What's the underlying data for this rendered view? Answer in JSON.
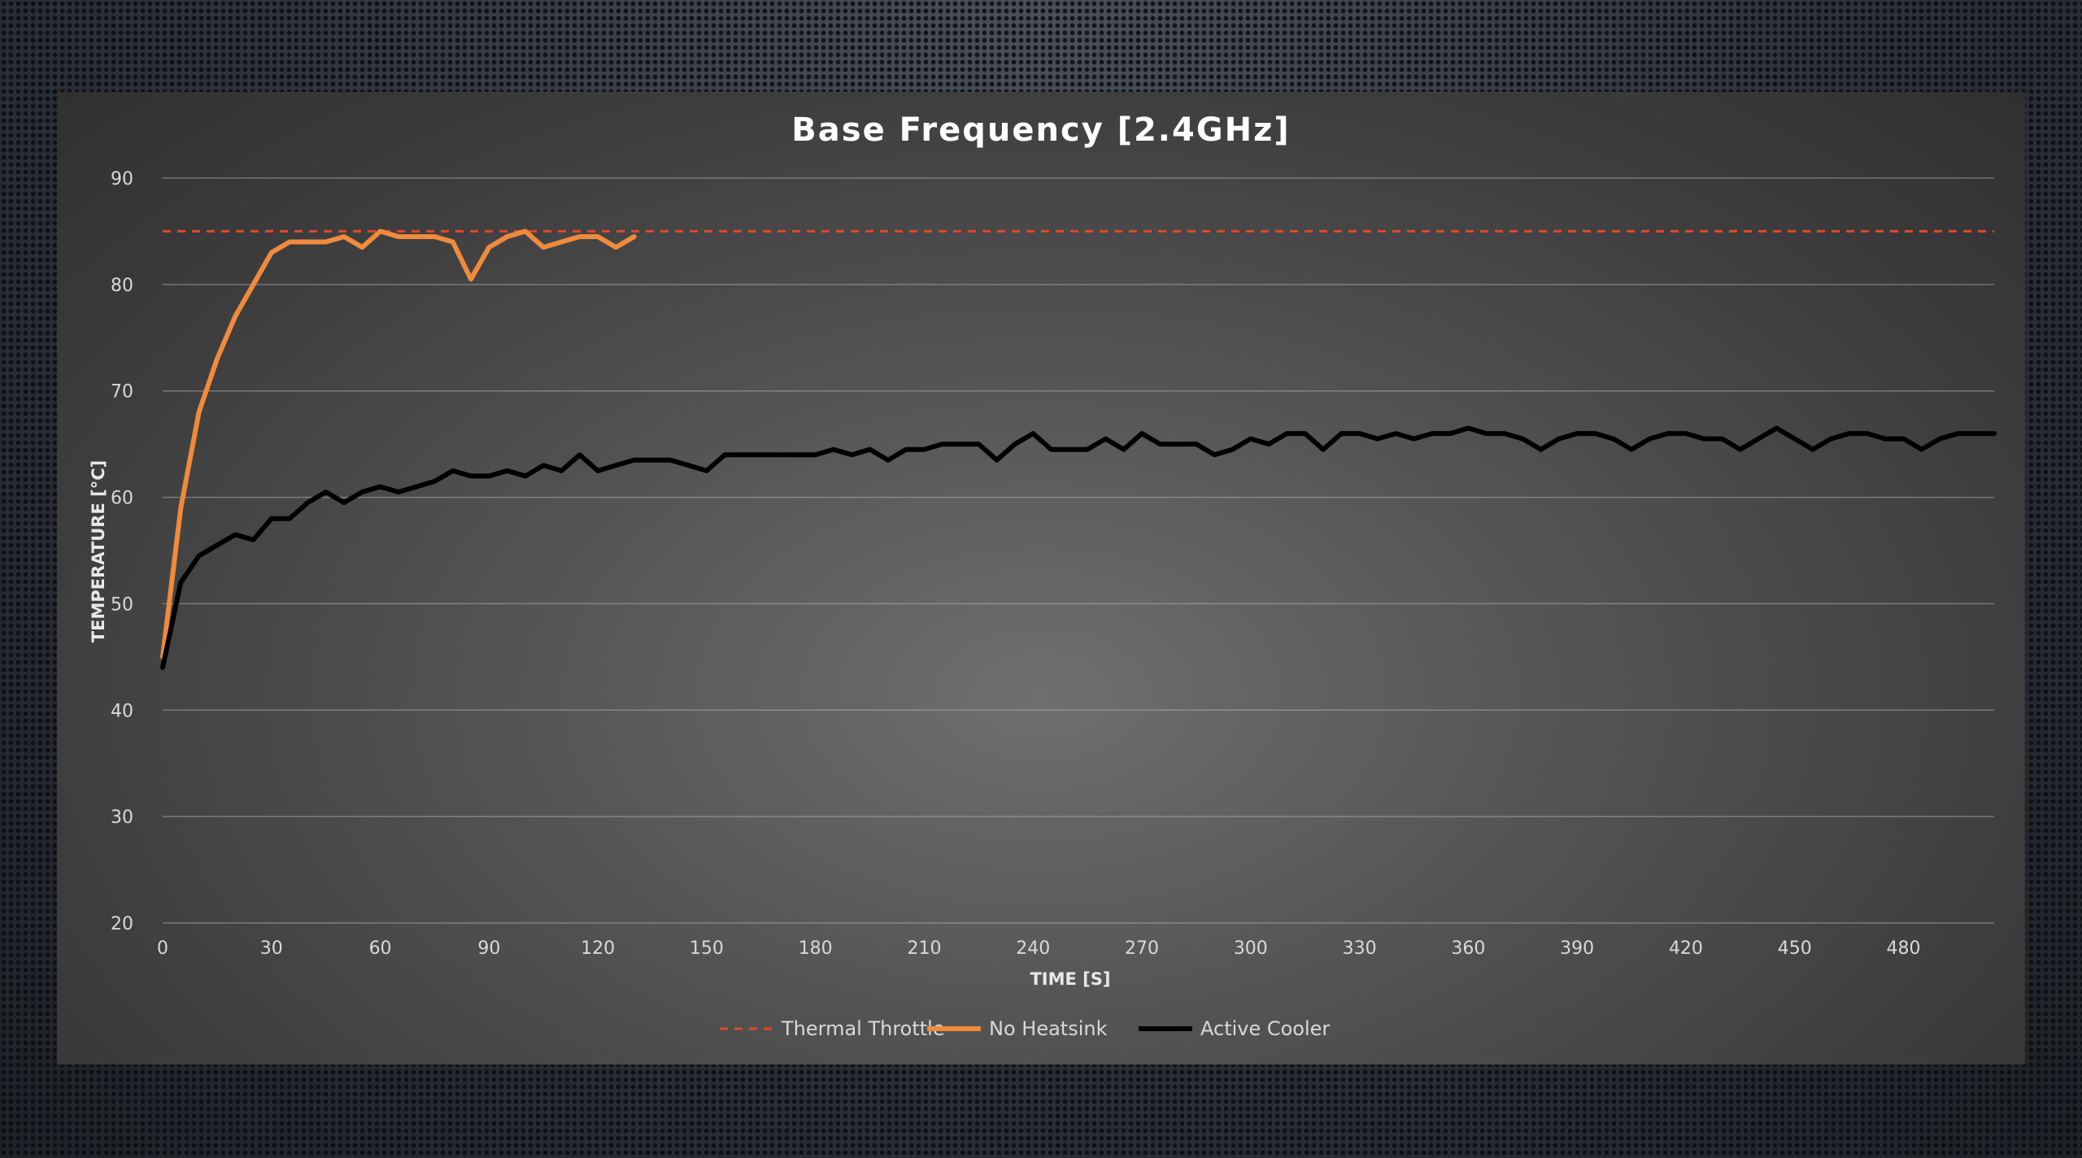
{
  "chart_data": {
    "type": "line",
    "title": "Base Frequency [2.4GHz]",
    "xlabel": "TIME [S]",
    "ylabel": "TEMPERATURE [°C]",
    "xlim": [
      0,
      505
    ],
    "ylim": [
      20,
      90
    ],
    "x_ticks": [
      0,
      30,
      60,
      90,
      120,
      150,
      180,
      210,
      240,
      270,
      300,
      330,
      360,
      390,
      420,
      450,
      480
    ],
    "y_ticks": [
      20,
      30,
      40,
      50,
      60,
      70,
      80,
      90
    ],
    "grid": "horizontal",
    "legend_position": "bottom",
    "series": [
      {
        "name": "Thermal Throttle",
        "color": "#e0482c",
        "style": "dashed",
        "x": [
          0,
          505
        ],
        "y": [
          85,
          85
        ]
      },
      {
        "name": "No Heatsink",
        "color": "#f08a3c",
        "style": "solid",
        "x": [
          0,
          5,
          10,
          15,
          20,
          25,
          30,
          35,
          40,
          45,
          50,
          55,
          60,
          65,
          70,
          75,
          80,
          85,
          90,
          95,
          100,
          105,
          110,
          115,
          120,
          125,
          130
        ],
        "y": [
          45,
          59,
          68,
          73,
          77,
          80,
          83,
          84,
          84,
          84,
          84.5,
          83.5,
          85,
          84.5,
          84.5,
          84.5,
          84,
          80.5,
          83.5,
          84.5,
          85,
          83.5,
          84,
          84.5,
          84.5,
          83.5,
          84.5
        ]
      },
      {
        "name": "Active Cooler",
        "color": "#000000",
        "style": "solid",
        "x": [
          0,
          5,
          10,
          15,
          20,
          25,
          30,
          35,
          40,
          45,
          50,
          55,
          60,
          65,
          70,
          75,
          80,
          85,
          90,
          95,
          100,
          105,
          110,
          115,
          120,
          125,
          130,
          135,
          140,
          145,
          150,
          155,
          160,
          165,
          170,
          175,
          180,
          185,
          190,
          195,
          200,
          205,
          210,
          215,
          220,
          225,
          230,
          235,
          240,
          245,
          250,
          255,
          260,
          265,
          270,
          275,
          280,
          285,
          290,
          295,
          300,
          305,
          310,
          315,
          320,
          325,
          330,
          335,
          340,
          345,
          350,
          355,
          360,
          365,
          370,
          375,
          380,
          385,
          390,
          395,
          400,
          405,
          410,
          415,
          420,
          425,
          430,
          435,
          440,
          445,
          450,
          455,
          460,
          465,
          470,
          475,
          480,
          485,
          490,
          495,
          500,
          505
        ],
        "y": [
          44,
          52,
          54.5,
          55.5,
          56.5,
          56,
          58,
          58,
          59.5,
          60.5,
          59.5,
          60.5,
          61,
          60.5,
          61,
          61.5,
          62.5,
          62,
          62,
          62.5,
          62,
          63,
          62.5,
          64,
          62.5,
          63,
          63.5,
          63.5,
          63.5,
          63,
          62.5,
          64,
          64,
          64,
          64,
          64,
          64,
          64.5,
          64,
          64.5,
          63.5,
          64.5,
          64.5,
          65,
          65,
          65,
          63.5,
          65,
          66,
          64.5,
          64.5,
          64.5,
          65.5,
          64.5,
          66,
          65,
          65,
          65,
          64,
          64.5,
          65.5,
          65,
          66,
          66,
          64.5,
          66,
          66,
          65.5,
          66,
          65.5,
          66,
          66,
          66.5,
          66,
          66,
          65.5,
          64.5,
          65.5,
          66,
          66,
          65.5,
          64.5,
          65.5,
          66,
          66,
          65.5,
          65.5,
          64.5,
          65.5,
          66.5,
          65.5,
          64.5,
          65.5,
          66,
          66,
          65.5,
          65.5,
          64.5,
          65.5,
          66,
          66,
          66
        ]
      }
    ]
  }
}
